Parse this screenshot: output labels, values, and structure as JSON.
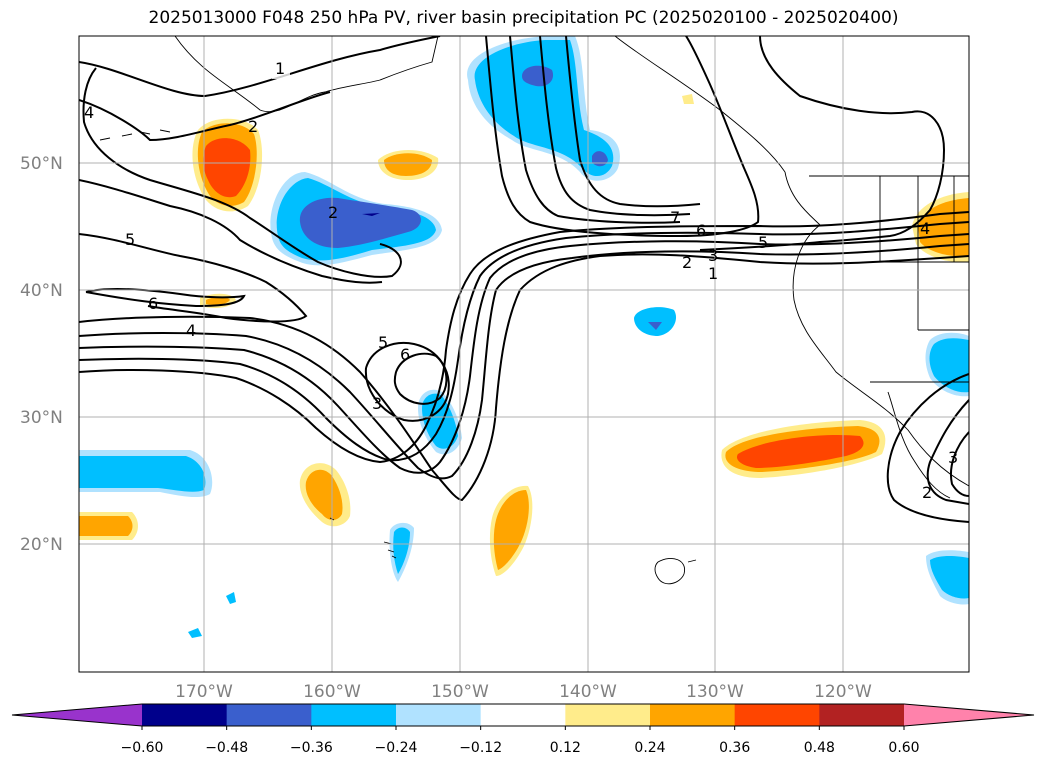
{
  "title": "2025013000 F048 250 hPa PV, river basin precipitation PC (2025020100 - 2025020400)",
  "lat_labels": [
    "50°N",
    "40°N",
    "30°N",
    "20°N"
  ],
  "lon_labels": [
    "170°W",
    "160°W",
    "150°W",
    "140°W",
    "130°W",
    "120°W"
  ],
  "contour_labels": [
    "1",
    "2",
    "4",
    "2",
    "5",
    "6",
    "4",
    "7",
    "6",
    "5",
    "3",
    "2",
    "1",
    "5",
    "6",
    "3",
    "4",
    "3",
    "2"
  ],
  "colorbar": {
    "ticks": [
      "−0.60",
      "−0.48",
      "−0.36",
      "−0.24",
      "−0.12",
      "0.12",
      "0.24",
      "0.36",
      "0.48",
      "0.60"
    ],
    "colors": [
      "#9933cc",
      "#00008b",
      "#3a5fcd",
      "#00bfff",
      "#b0e2ff",
      "#ffffff",
      "#ffec8b",
      "#ffa500",
      "#ff4500",
      "#b22222",
      "#ff82ab"
    ]
  }
}
